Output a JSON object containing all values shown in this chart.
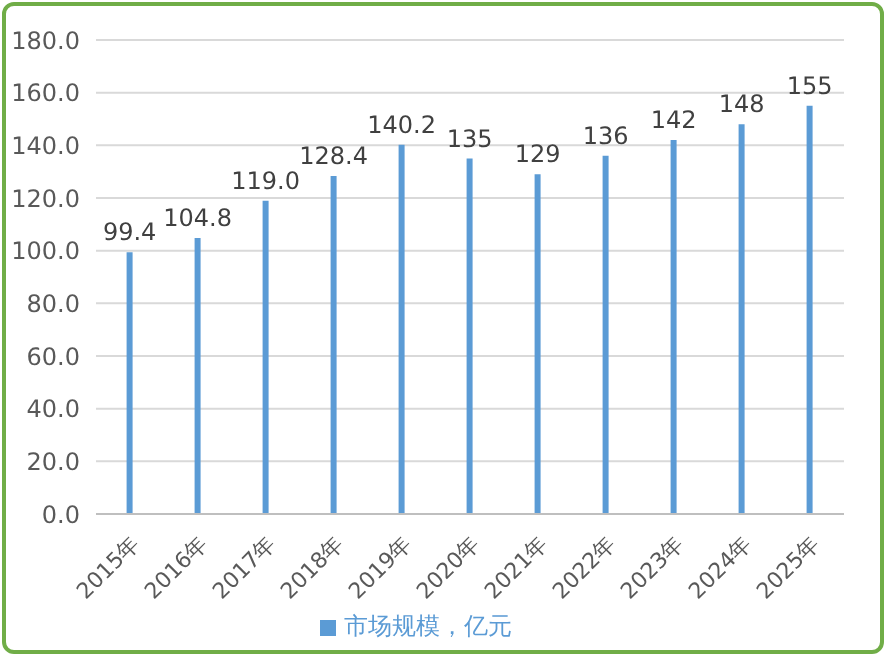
{
  "chart_data": {
    "type": "bar",
    "categories": [
      "2015年",
      "2016年",
      "2017年",
      "2018年",
      "2019年",
      "2020年",
      "2021年",
      "2022年",
      "2023年",
      "2024年",
      "2025年"
    ],
    "series": [
      {
        "name": "市场规模，亿元",
        "color": "#5b9bd5",
        "values": [
          99.4,
          104.8,
          119.0,
          128.4,
          140.2,
          135,
          129,
          136,
          142,
          148,
          155
        ],
        "value_labels": [
          "99.4",
          "104.8",
          "119.0",
          "128.4",
          "140.2",
          "135",
          "129",
          "136",
          "142",
          "148",
          "155"
        ]
      }
    ],
    "ylim": [
      0,
      180
    ],
    "yticks": [
      {
        "value": 0,
        "label": "0.0"
      },
      {
        "value": 20,
        "label": "20.0"
      },
      {
        "value": 40,
        "label": "40.0"
      },
      {
        "value": 60,
        "label": "60.0"
      },
      {
        "value": 80,
        "label": "80.0"
      },
      {
        "value": 100,
        "label": "100.0"
      },
      {
        "value": 120,
        "label": "120.0"
      },
      {
        "value": 140,
        "label": "140.0"
      },
      {
        "value": 160,
        "label": "160.0"
      },
      {
        "value": 180,
        "label": "180.0"
      }
    ],
    "grid": "y",
    "legend": "bottom"
  }
}
